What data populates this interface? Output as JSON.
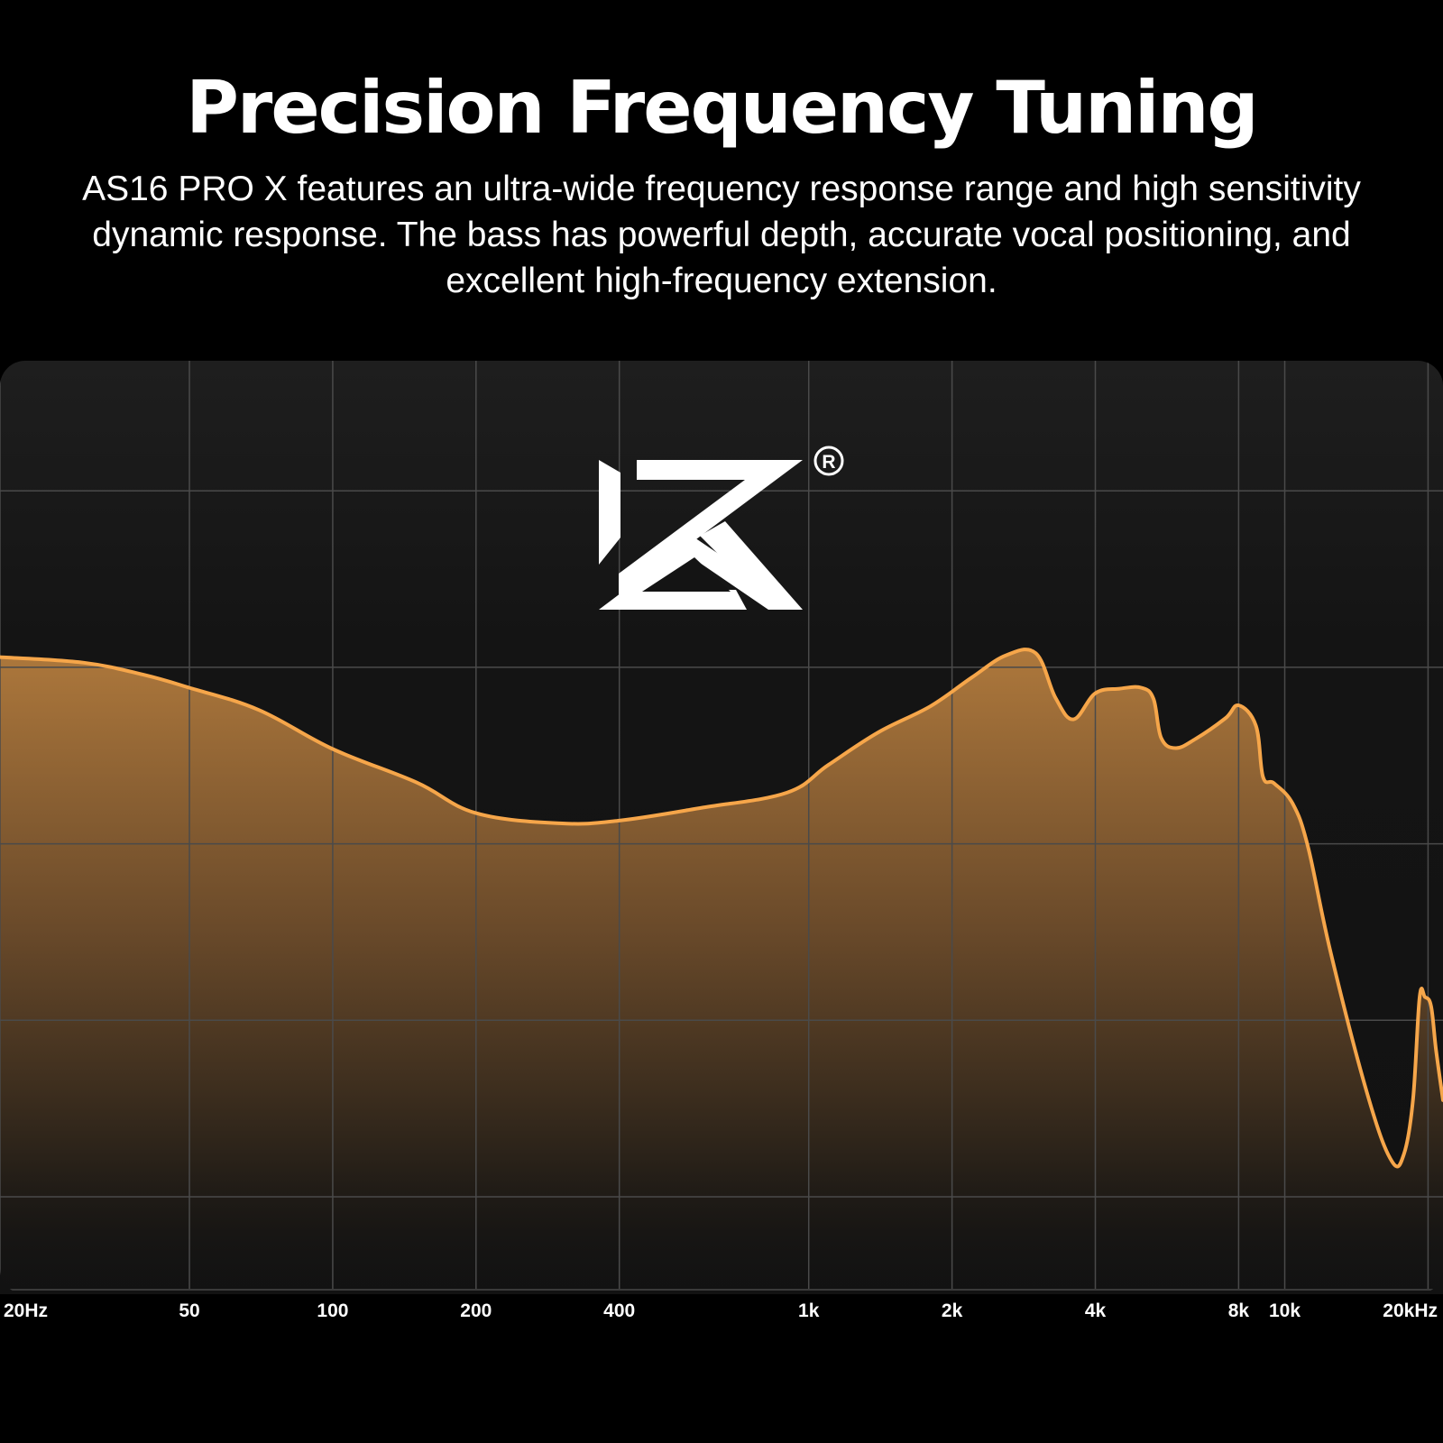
{
  "header": {
    "title": "Precision Frequency Tuning",
    "subtitle": "AS16 PRO X features an ultra-wide frequency response range and high sensitivity dynamic response. The bass has powerful depth, accurate vocal positioning, and excellent high-frequency extension."
  },
  "logo": {
    "name": "kz-logo-icon",
    "registered_mark": "R"
  },
  "colors": {
    "background": "#000000",
    "panel": "#141414",
    "curve": "#F6A64A",
    "fill_top": "#B07A3C",
    "grid": "#4a4a4a"
  },
  "chart_data": {
    "type": "area",
    "title": "",
    "xlabel": "",
    "ylabel": "",
    "x_scale": "log",
    "grid": true,
    "x_ticks": [
      {
        "value": 20,
        "label": "20Hz"
      },
      {
        "value": 50,
        "label": "50"
      },
      {
        "value": 100,
        "label": "100"
      },
      {
        "value": 200,
        "label": "200"
      },
      {
        "value": 400,
        "label": "400"
      },
      {
        "value": 1000,
        "label": "1k"
      },
      {
        "value": 2000,
        "label": "2k"
      },
      {
        "value": 4000,
        "label": "4k"
      },
      {
        "value": 8000,
        "label": "8k"
      },
      {
        "value": 10000,
        "label": "10k"
      },
      {
        "value": 20000,
        "label": "20kHz"
      }
    ],
    "xlim": [
      20,
      21500
    ],
    "ylim": [
      0,
      100
    ],
    "y_gridlines": [
      86,
      67,
      48,
      29,
      10
    ],
    "series": [
      {
        "values": [
          [
            20,
            68.1
          ],
          [
            30,
            67.5
          ],
          [
            40,
            66.2
          ],
          [
            50,
            64.8
          ],
          [
            70,
            62.4
          ],
          [
            100,
            58.2
          ],
          [
            150,
            54.6
          ],
          [
            200,
            51.3
          ],
          [
            300,
            50.2
          ],
          [
            400,
            50.5
          ],
          [
            600,
            51.9
          ],
          [
            900,
            53.5
          ],
          [
            1100,
            56.5
          ],
          [
            1400,
            60.0
          ],
          [
            1800,
            62.8
          ],
          [
            2200,
            65.9
          ],
          [
            2600,
            68.3
          ],
          [
            3000,
            68.5
          ],
          [
            3300,
            63.7
          ],
          [
            3600,
            61.4
          ],
          [
            4000,
            64.2
          ],
          [
            4500,
            64.7
          ],
          [
            5000,
            64.8
          ],
          [
            5300,
            63.6
          ],
          [
            5500,
            59.4
          ],
          [
            5900,
            58.3
          ],
          [
            6500,
            59.3
          ],
          [
            7500,
            61.5
          ],
          [
            8000,
            62.9
          ],
          [
            8700,
            60.7
          ],
          [
            9000,
            55.2
          ],
          [
            9500,
            54.5
          ],
          [
            10400,
            52.3
          ],
          [
            11200,
            47.6
          ],
          [
            12500,
            36.2
          ],
          [
            15000,
            20.6
          ],
          [
            16800,
            13.8
          ],
          [
            17800,
            14.6
          ],
          [
            18600,
            20.5
          ],
          [
            19200,
            31.5
          ],
          [
            19700,
            31.5
          ],
          [
            20300,
            30.5
          ],
          [
            20800,
            25.7
          ],
          [
            21500,
            20.4
          ]
        ]
      }
    ]
  }
}
